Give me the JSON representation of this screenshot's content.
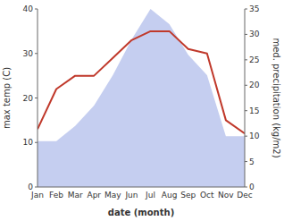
{
  "chart_data": {
    "type": "line",
    "xlabel": "date (month)",
    "ylabel": "max temp (C)",
    "y2label": "med. precipitation (kg/m2)",
    "categories": [
      "Jan",
      "Feb",
      "Mar",
      "Apr",
      "May",
      "Jun",
      "Jul",
      "Aug",
      "Sep",
      "Oct",
      "Nov",
      "Dec"
    ],
    "series": [
      {
        "type": "area",
        "axis": "y2",
        "color": "#c5cef0",
        "values": [
          9,
          9,
          12,
          16,
          22,
          29,
          35,
          32,
          26,
          22,
          10,
          10
        ]
      },
      {
        "type": "line",
        "color": "#c0392b",
        "values": [
          13,
          22,
          25,
          25,
          29,
          33,
          35,
          35,
          31,
          30,
          15,
          12
        ]
      }
    ],
    "ylim": [
      0,
      40
    ],
    "yticks": [
      0,
      10,
      20,
      30,
      40
    ],
    "y2lim": [
      0,
      35
    ],
    "y2ticks": [
      0,
      5,
      10,
      15,
      20,
      25,
      30,
      35
    ],
    "grid": false
  }
}
